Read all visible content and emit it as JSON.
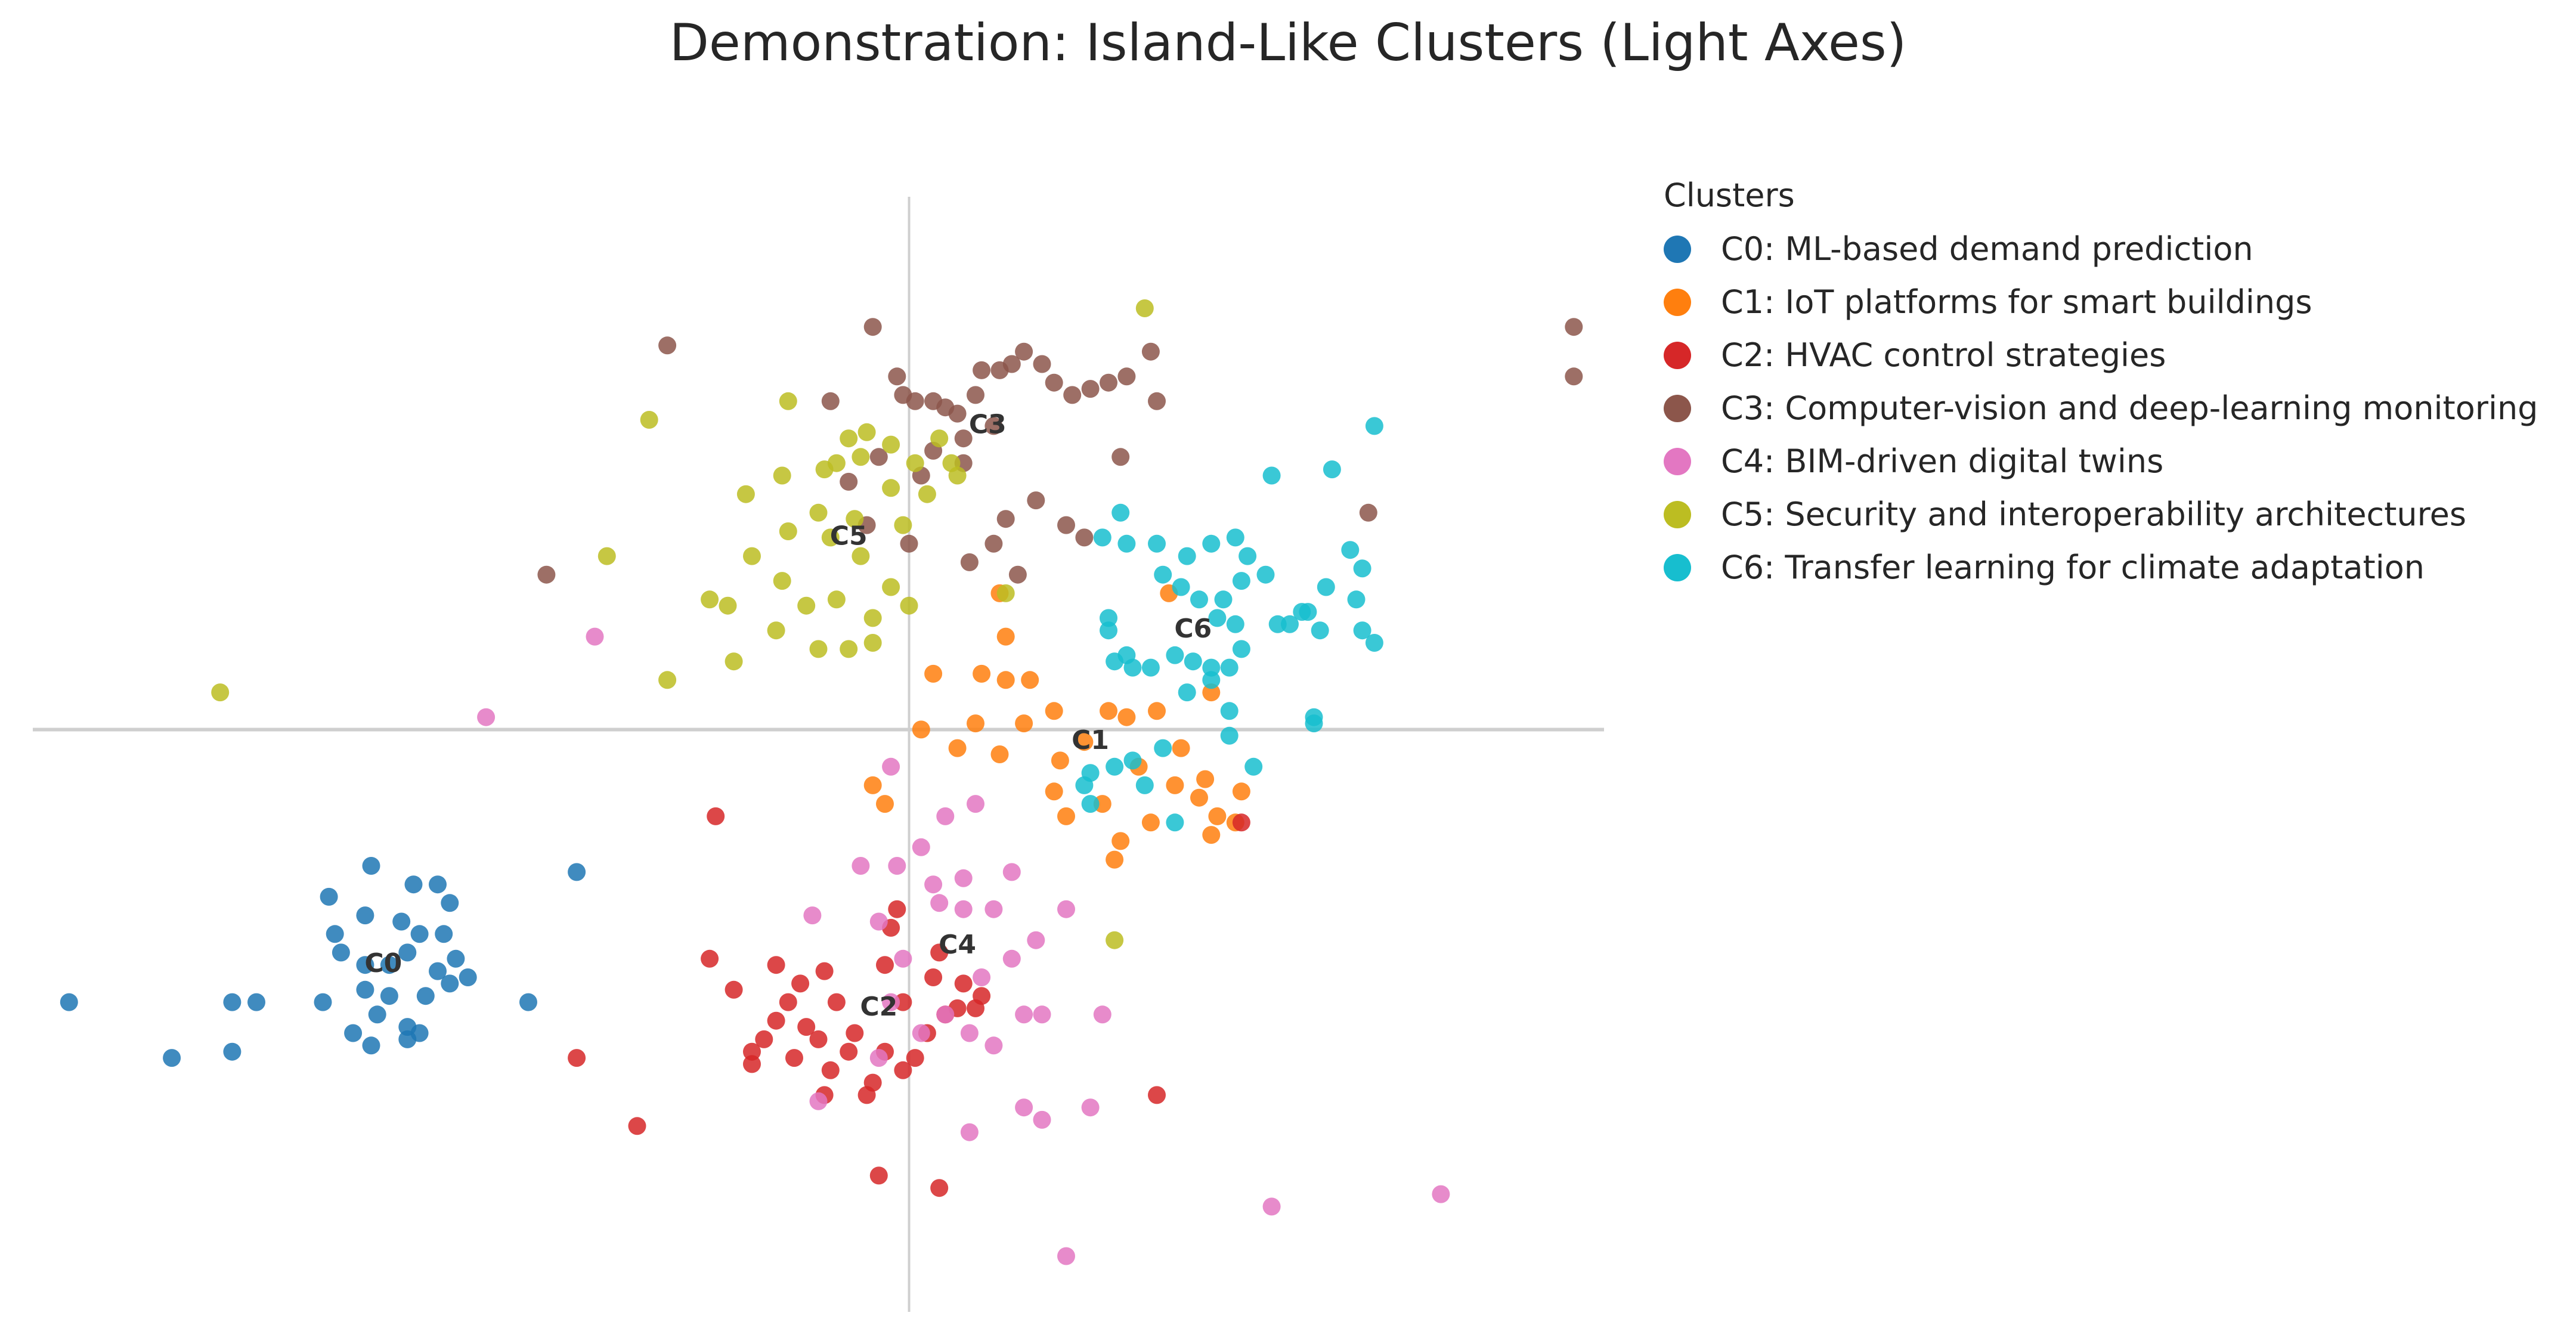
{
  "chart_data": {
    "type": "scatter",
    "title": "Demonstration: Island-Like Clusters (Light Axes)",
    "xlabel": "",
    "ylabel": "",
    "xlim": [
      -14.5,
      11.5
    ],
    "ylim": [
      -9.4,
      8.6
    ],
    "zero_lines": true,
    "legend": {
      "title": "Clusters",
      "placement": "right, outside plot"
    },
    "series": [
      {
        "name": "C0: ML-based demand prediction",
        "label": "C0",
        "color": "#1f77b4",
        "centroid": [
          -8.7,
          -3.8
        ],
        "points": [
          [
            -9.6,
            -2.7
          ],
          [
            -8.9,
            -2.2
          ],
          [
            -8.2,
            -2.5
          ],
          [
            -7.8,
            -2.5
          ],
          [
            -7.6,
            -2.8
          ],
          [
            -9.5,
            -3.3
          ],
          [
            -9.0,
            -3.0
          ],
          [
            -8.4,
            -3.1
          ],
          [
            -8.1,
            -3.3
          ],
          [
            -7.7,
            -3.3
          ],
          [
            -7.5,
            -3.7
          ],
          [
            -9.4,
            -3.6
          ],
          [
            -9.0,
            -3.8
          ],
          [
            -8.6,
            -3.8
          ],
          [
            -8.3,
            -3.6
          ],
          [
            -7.8,
            -3.9
          ],
          [
            -7.3,
            -4.0
          ],
          [
            -9.0,
            -4.2
          ],
          [
            -8.6,
            -4.3
          ],
          [
            -8.0,
            -4.3
          ],
          [
            -7.6,
            -4.1
          ],
          [
            -9.7,
            -4.4
          ],
          [
            -8.8,
            -4.6
          ],
          [
            -8.3,
            -4.8
          ],
          [
            -8.1,
            -4.9
          ],
          [
            -9.2,
            -4.9
          ],
          [
            -8.9,
            -5.1
          ],
          [
            -10.8,
            -4.4
          ],
          [
            -11.2,
            -4.4
          ],
          [
            -13.9,
            -4.4
          ],
          [
            -12.2,
            -5.3
          ],
          [
            -11.2,
            -5.2
          ],
          [
            -6.3,
            -4.4
          ],
          [
            -5.5,
            -2.3
          ],
          [
            -8.3,
            -5.0
          ]
        ]
      },
      {
        "name": "C1: IoT platforms for smart buildings",
        "label": "C1",
        "color": "#ff7f0e",
        "centroid": [
          3.0,
          -0.2
        ],
        "points": [
          [
            1.6,
            1.5
          ],
          [
            1.2,
            0.9
          ],
          [
            0.4,
            0.9
          ],
          [
            1.6,
            0.8
          ],
          [
            2.0,
            0.8
          ],
          [
            2.4,
            0.3
          ],
          [
            1.9,
            0.1
          ],
          [
            1.1,
            0.1
          ],
          [
            0.2,
            -0.0
          ],
          [
            0.8,
            -0.3
          ],
          [
            1.5,
            -0.4
          ],
          [
            2.5,
            -0.5
          ],
          [
            2.9,
            -0.2
          ],
          [
            3.3,
            0.3
          ],
          [
            3.6,
            0.2
          ],
          [
            4.1,
            0.3
          ],
          [
            4.5,
            -0.3
          ],
          [
            3.8,
            -0.6
          ],
          [
            4.4,
            -0.9
          ],
          [
            4.8,
            -1.1
          ],
          [
            4.9,
            -0.8
          ],
          [
            5.5,
            -1.0
          ],
          [
            5.1,
            -1.4
          ],
          [
            5.0,
            -1.7
          ],
          [
            4.0,
            -1.5
          ],
          [
            3.2,
            -1.2
          ],
          [
            2.6,
            -1.4
          ],
          [
            2.4,
            -1.0
          ],
          [
            -0.6,
            -0.9
          ],
          [
            -0.4,
            -1.2
          ],
          [
            3.4,
            -2.1
          ],
          [
            3.5,
            -1.8
          ],
          [
            5.4,
            -1.5
          ],
          [
            4.3,
            2.2
          ],
          [
            5.0,
            0.6
          ],
          [
            1.5,
            2.2
          ]
        ]
      },
      {
        "name": "C2: HVAC control strategies",
        "label": "C2",
        "color": "#d62728",
        "centroid": [
          -0.5,
          -4.5
        ],
        "points": [
          [
            -3.2,
            -1.4
          ],
          [
            -3.3,
            -3.7
          ],
          [
            -2.9,
            -4.2
          ],
          [
            -2.2,
            -3.8
          ],
          [
            -1.8,
            -4.1
          ],
          [
            -2.0,
            -4.4
          ],
          [
            -1.4,
            -3.9
          ],
          [
            -1.7,
            -4.8
          ],
          [
            -2.2,
            -4.7
          ],
          [
            -2.4,
            -5.0
          ],
          [
            -2.6,
            -5.4
          ],
          [
            -1.9,
            -5.3
          ],
          [
            -1.5,
            -5.0
          ],
          [
            -1.3,
            -5.5
          ],
          [
            -1.0,
            -5.2
          ],
          [
            -0.9,
            -4.9
          ],
          [
            -0.6,
            -5.7
          ],
          [
            -0.4,
            -5.2
          ],
          [
            -0.1,
            -5.5
          ],
          [
            0.1,
            -5.3
          ],
          [
            0.3,
            -4.9
          ],
          [
            0.6,
            -4.6
          ],
          [
            0.8,
            -4.5
          ],
          [
            1.1,
            -4.5
          ],
          [
            1.2,
            -4.3
          ],
          [
            0.9,
            -4.1
          ],
          [
            0.4,
            -4.0
          ],
          [
            -0.3,
            -3.2
          ],
          [
            -0.4,
            -3.8
          ],
          [
            0.5,
            -3.6
          ],
          [
            -0.2,
            -2.9
          ],
          [
            -2.6,
            -5.2
          ],
          [
            -1.4,
            -5.9
          ],
          [
            -0.7,
            -5.9
          ],
          [
            -4.5,
            -6.4
          ],
          [
            -5.5,
            -5.3
          ],
          [
            -0.5,
            -7.2
          ],
          [
            0.5,
            -7.4
          ],
          [
            4.1,
            -5.9
          ],
          [
            5.5,
            -1.5
          ],
          [
            -0.1,
            -4.4
          ],
          [
            -1.2,
            -4.4
          ]
        ]
      },
      {
        "name": "C3: Computer-vision and deep-learning monitoring",
        "label": "C3",
        "color": "#8c564b",
        "centroid": [
          1.3,
          4.9
        ],
        "points": [
          [
            -4.0,
            6.2
          ],
          [
            -1.3,
            5.3
          ],
          [
            -0.6,
            6.5
          ],
          [
            -0.2,
            5.7
          ],
          [
            -0.1,
            5.4
          ],
          [
            0.1,
            5.3
          ],
          [
            0.4,
            5.3
          ],
          [
            0.8,
            5.1
          ],
          [
            1.1,
            5.4
          ],
          [
            1.2,
            5.8
          ],
          [
            1.5,
            5.8
          ],
          [
            1.7,
            5.9
          ],
          [
            1.9,
            6.1
          ],
          [
            2.2,
            5.9
          ],
          [
            2.4,
            5.6
          ],
          [
            2.7,
            5.4
          ],
          [
            3.0,
            5.5
          ],
          [
            3.3,
            5.6
          ],
          [
            3.6,
            5.7
          ],
          [
            4.0,
            6.1
          ],
          [
            4.1,
            5.3
          ],
          [
            3.5,
            4.4
          ],
          [
            2.1,
            3.7
          ],
          [
            1.6,
            3.4
          ],
          [
            1.4,
            3.0
          ],
          [
            2.6,
            3.3
          ],
          [
            2.9,
            3.1
          ],
          [
            0.2,
            4.1
          ],
          [
            0.4,
            4.5
          ],
          [
            0.9,
            4.3
          ],
          [
            1.0,
            2.7
          ],
          [
            1.8,
            2.5
          ],
          [
            -0.5,
            4.4
          ],
          [
            -0.7,
            3.3
          ],
          [
            -1.0,
            4.0
          ],
          [
            0.0,
            3.0
          ],
          [
            -6.0,
            2.5
          ],
          [
            11.0,
            6.5
          ],
          [
            11.0,
            5.7
          ],
          [
            7.6,
            3.5
          ],
          [
            0.6,
            5.2
          ],
          [
            0.9,
            4.7
          ],
          [
            1.4,
            4.9
          ]
        ]
      },
      {
        "name": "C4: BIM-driven digital twins",
        "label": "C4",
        "color": "#e377c2",
        "centroid": [
          0.8,
          -3.5
        ],
        "points": [
          [
            -0.3,
            -0.6
          ],
          [
            0.6,
            -1.4
          ],
          [
            1.1,
            -1.2
          ],
          [
            0.2,
            -1.9
          ],
          [
            -0.2,
            -2.2
          ],
          [
            -0.8,
            -2.2
          ],
          [
            0.4,
            -2.5
          ],
          [
            0.9,
            -2.4
          ],
          [
            1.7,
            -2.3
          ],
          [
            0.5,
            -2.8
          ],
          [
            0.9,
            -2.9
          ],
          [
            1.4,
            -2.9
          ],
          [
            2.6,
            -2.9
          ],
          [
            2.1,
            -3.4
          ],
          [
            1.7,
            -3.7
          ],
          [
            1.2,
            -4.0
          ],
          [
            -1.6,
            -3.0
          ],
          [
            -0.1,
            -3.7
          ],
          [
            0.6,
            -4.6
          ],
          [
            1.0,
            -4.9
          ],
          [
            1.9,
            -4.6
          ],
          [
            2.2,
            -4.6
          ],
          [
            3.2,
            -4.6
          ],
          [
            1.4,
            -5.1
          ],
          [
            -1.5,
            -6.0
          ],
          [
            -0.5,
            -5.3
          ],
          [
            1.9,
            -6.1
          ],
          [
            2.2,
            -6.3
          ],
          [
            3.0,
            -6.1
          ],
          [
            1.0,
            -6.5
          ],
          [
            2.6,
            -8.5
          ],
          [
            6.0,
            -7.7
          ],
          [
            8.8,
            -7.5
          ],
          [
            -5.2,
            1.5
          ],
          [
            -7.0,
            0.2
          ],
          [
            -0.3,
            -4.4
          ],
          [
            -0.5,
            -3.1
          ],
          [
            0.2,
            -4.9
          ]
        ]
      },
      {
        "name": "C5: Security and interoperability architectures",
        "label": "C5",
        "color": "#bcbd22",
        "centroid": [
          -1.0,
          3.1
        ],
        "points": [
          [
            -4.3,
            5.0
          ],
          [
            -2.0,
            5.3
          ],
          [
            -2.7,
            3.8
          ],
          [
            -2.1,
            4.1
          ],
          [
            -1.4,
            4.2
          ],
          [
            -1.2,
            4.3
          ],
          [
            -1.0,
            4.7
          ],
          [
            -0.7,
            4.8
          ],
          [
            -0.3,
            4.6
          ],
          [
            0.1,
            4.3
          ],
          [
            0.7,
            4.3
          ],
          [
            0.5,
            4.7
          ],
          [
            0.8,
            4.1
          ],
          [
            0.3,
            3.8
          ],
          [
            -0.3,
            3.9
          ],
          [
            -0.9,
            3.4
          ],
          [
            -1.5,
            3.5
          ],
          [
            -2.0,
            3.2
          ],
          [
            -1.3,
            3.1
          ],
          [
            -0.8,
            2.8
          ],
          [
            -0.3,
            2.3
          ],
          [
            0.0,
            2.0
          ],
          [
            -0.6,
            1.8
          ],
          [
            -1.2,
            2.1
          ],
          [
            -1.7,
            2.0
          ],
          [
            -2.1,
            2.4
          ],
          [
            -2.6,
            2.8
          ],
          [
            -3.0,
            2.0
          ],
          [
            -3.3,
            2.1
          ],
          [
            -2.2,
            1.6
          ],
          [
            -1.5,
            1.3
          ],
          [
            -1.0,
            1.3
          ],
          [
            -0.6,
            1.4
          ],
          [
            -2.9,
            1.1
          ],
          [
            -4.0,
            0.8
          ],
          [
            -5.0,
            2.8
          ],
          [
            -11.4,
            0.6
          ],
          [
            3.9,
            6.8
          ],
          [
            1.6,
            2.2
          ],
          [
            -0.8,
            4.4
          ],
          [
            -0.1,
            3.3
          ],
          [
            3.4,
            -3.4
          ]
        ]
      },
      {
        "name": "C6: Transfer learning for climate adaptation",
        "label": "C6",
        "color": "#17becf",
        "centroid": [
          4.7,
          1.6
        ],
        "points": [
          [
            3.5,
            3.5
          ],
          [
            3.2,
            3.1
          ],
          [
            3.6,
            3.0
          ],
          [
            4.1,
            3.0
          ],
          [
            4.2,
            2.5
          ],
          [
            4.6,
            2.8
          ],
          [
            4.5,
            2.3
          ],
          [
            5.0,
            3.0
          ],
          [
            5.4,
            3.1
          ],
          [
            5.6,
            2.8
          ],
          [
            5.9,
            2.5
          ],
          [
            5.5,
            2.4
          ],
          [
            5.2,
            2.1
          ],
          [
            4.8,
            2.1
          ],
          [
            5.1,
            1.8
          ],
          [
            5.4,
            1.7
          ],
          [
            5.5,
            1.3
          ],
          [
            5.3,
            1.0
          ],
          [
            5.0,
            1.0
          ],
          [
            4.7,
            1.1
          ],
          [
            4.4,
            1.2
          ],
          [
            4.0,
            1.0
          ],
          [
            3.7,
            1.0
          ],
          [
            3.4,
            1.1
          ],
          [
            3.3,
            1.6
          ],
          [
            3.3,
            1.8
          ],
          [
            3.6,
            1.2
          ],
          [
            4.6,
            0.6
          ],
          [
            5.0,
            0.8
          ],
          [
            5.3,
            0.3
          ],
          [
            5.3,
            -0.1
          ],
          [
            5.7,
            -0.6
          ],
          [
            4.2,
            -0.3
          ],
          [
            3.9,
            -0.9
          ],
          [
            3.7,
            -0.5
          ],
          [
            3.4,
            -0.6
          ],
          [
            3.0,
            -1.2
          ],
          [
            2.9,
            -0.9
          ],
          [
            3.0,
            -0.7
          ],
          [
            4.4,
            -1.5
          ],
          [
            6.6,
            1.9
          ],
          [
            6.9,
            2.3
          ],
          [
            7.3,
            2.9
          ],
          [
            7.5,
            2.6
          ],
          [
            7.4,
            2.1
          ],
          [
            7.5,
            1.6
          ],
          [
            6.8,
            1.6
          ],
          [
            6.5,
            1.9
          ],
          [
            6.3,
            1.7
          ],
          [
            6.1,
            1.7
          ],
          [
            6.7,
            0.2
          ],
          [
            6.7,
            0.1
          ],
          [
            6.0,
            4.1
          ],
          [
            7.0,
            4.2
          ],
          [
            7.7,
            4.9
          ],
          [
            7.7,
            1.4
          ]
        ]
      }
    ]
  }
}
